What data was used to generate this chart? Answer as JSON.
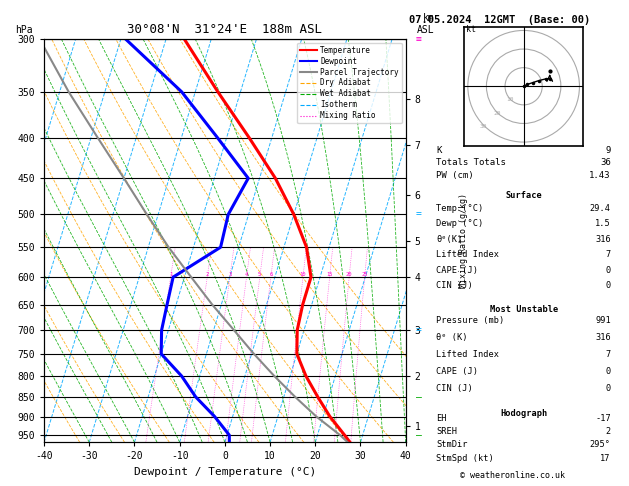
{
  "title_left": "30°08'N  31°24'E  188m ASL",
  "title_right": "07.05.2024  12GMT  (Base: 00)",
  "xlabel": "Dewpoint / Temperature (°C)",
  "ylabel_left": "hPa",
  "pressure_levels": [
    300,
    350,
    400,
    450,
    500,
    550,
    600,
    650,
    700,
    750,
    800,
    850,
    900,
    950
  ],
  "xlim": [
    -40,
    40
  ],
  "pmin": 300,
  "pmax": 970,
  "temp_profile_p": [
    991,
    950,
    900,
    850,
    800,
    750,
    700,
    650,
    600,
    550,
    500,
    450,
    400,
    350,
    300
  ],
  "temp_profile_t": [
    29.4,
    26.0,
    21.5,
    17.5,
    13.5,
    10.0,
    8.5,
    8.0,
    8.0,
    5.0,
    0.0,
    -6.5,
    -15.0,
    -25.0,
    -36.0
  ],
  "dewp_profile_p": [
    991,
    950,
    900,
    850,
    800,
    750,
    700,
    650,
    600,
    550,
    500,
    450,
    400,
    350,
    300
  ],
  "dewp_profile_t": [
    1.5,
    0.5,
    -4.0,
    -9.5,
    -14.0,
    -20.0,
    -21.5,
    -22.0,
    -22.5,
    -14.0,
    -14.5,
    -12.5,
    -22.0,
    -33.0,
    -49.0
  ],
  "parcel_p": [
    991,
    950,
    900,
    850,
    800,
    750,
    700,
    650,
    600,
    550,
    500,
    450,
    400,
    350,
    300
  ],
  "parcel_t": [
    29.4,
    25.0,
    18.5,
    12.5,
    6.5,
    0.5,
    -5.5,
    -12.0,
    -18.5,
    -25.5,
    -32.5,
    -40.0,
    -48.5,
    -58.0,
    -68.0
  ],
  "skew_factor": 27.0,
  "mixing_ratios": [
    1,
    2,
    3,
    4,
    5,
    6,
    10,
    15,
    20,
    25
  ],
  "colors": {
    "temperature": "#ff0000",
    "dewpoint": "#0000ff",
    "parcel": "#888888",
    "dry_adiabat": "#ffa500",
    "wet_adiabat": "#00aa00",
    "isotherm": "#00aaff",
    "mixing_ratio": "#ff00cc",
    "grid": "#000000",
    "background": "#ffffff"
  },
  "legend_items": [
    {
      "label": "Temperature",
      "color": "#ff0000",
      "style": "solid"
    },
    {
      "label": "Dewpoint",
      "color": "#0000ff",
      "style": "solid"
    },
    {
      "label": "Parcel Trajectory",
      "color": "#888888",
      "style": "solid"
    },
    {
      "label": "Dry Adiabat",
      "color": "#ffa500",
      "style": "dashed"
    },
    {
      "label": "Wet Adiabat",
      "color": "#00aa00",
      "style": "dashed"
    },
    {
      "label": "Isotherm",
      "color": "#00aaff",
      "style": "dashed"
    },
    {
      "label": "Mixing Ratio",
      "color": "#ff00cc",
      "style": "dotted"
    }
  ],
  "km_ticks": {
    "8": 357,
    "7": 408,
    "6": 472,
    "5": 540,
    "4": 600,
    "3": 700,
    "2": 800,
    "1": 925
  },
  "hodograph": {
    "rings": [
      10,
      20,
      30
    ],
    "trace_u": [
      0,
      2,
      5,
      8,
      12,
      14
    ],
    "trace_v": [
      0,
      1,
      2,
      3,
      4,
      4
    ],
    "storm_u": 14,
    "storm_v": 8
  },
  "table_data": {
    "K": "9",
    "Totals Totals": "36",
    "PW (cm)": "1.43",
    "Surface_Temp": "29.4",
    "Surface_Dewp": "1.5",
    "Surface_theta_e": "316",
    "Surface_LI": "7",
    "Surface_CAPE": "0",
    "Surface_CIN": "0",
    "MU_Pressure": "991",
    "MU_theta_e": "316",
    "MU_LI": "7",
    "MU_CAPE": "0",
    "MU_CIN": "0",
    "EH": "-17",
    "SREH": "2",
    "StmDir": "295°",
    "StmSpd": "17"
  },
  "wind_barbs": {
    "pressures": [
      300,
      500,
      700,
      850,
      950
    ],
    "speeds": [
      25,
      18,
      12,
      8,
      5
    ],
    "colors": [
      "#ff00cc",
      "#00aaff",
      "#00aaff",
      "#00aa00",
      "#00aa00"
    ]
  },
  "copyright": "© weatheronline.co.uk"
}
